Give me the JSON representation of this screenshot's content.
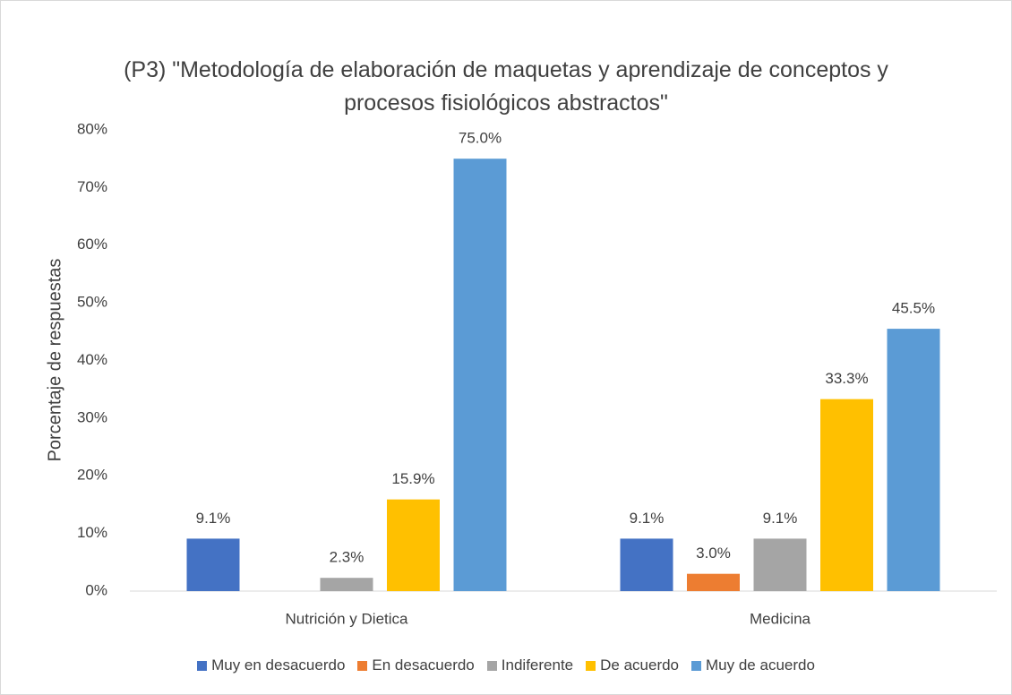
{
  "chart_data": {
    "type": "bar",
    "title": "(P3) \"Metodología de elaboración de maquetas y aprendizaje de conceptos y procesos fisiológicos abstractos\"",
    "y_label": "Porcentaje de respuestas",
    "categories": [
      "Nutrición y Dietica",
      "Medicina"
    ],
    "series": [
      {
        "name": "Muy en desacuerdo",
        "color": "#4472c4",
        "values": [
          9.1,
          9.1
        ],
        "value_labels": [
          "9.1%",
          "9.1%"
        ]
      },
      {
        "name": "En desacuerdo",
        "color": "#ed7d31",
        "values": [
          null,
          3.0
        ],
        "value_labels": [
          null,
          "3.0%"
        ]
      },
      {
        "name": "Indiferente",
        "color": "#a5a5a5",
        "values": [
          2.3,
          9.1
        ],
        "value_labels": [
          "2.3%",
          "9.1%"
        ]
      },
      {
        "name": "De acuerdo",
        "color": "#ffc000",
        "values": [
          15.9,
          33.3
        ],
        "value_labels": [
          "15.9%",
          "33.3%"
        ]
      },
      {
        "name": "Muy de acuerdo",
        "color": "#5b9bd5",
        "values": [
          75.0,
          45.5
        ],
        "value_labels": [
          "75.0%",
          "45.5%"
        ]
      }
    ],
    "ylim": [
      0,
      80
    ],
    "yticks": [
      {
        "value": 0,
        "label": "0%"
      },
      {
        "value": 10,
        "label": "10%"
      },
      {
        "value": 20,
        "label": "20%"
      },
      {
        "value": 30,
        "label": "30%"
      },
      {
        "value": 40,
        "label": "40%"
      },
      {
        "value": 50,
        "label": "50%"
      },
      {
        "value": 60,
        "label": "60%"
      },
      {
        "value": 70,
        "label": "70%"
      },
      {
        "value": 80,
        "label": "80%"
      }
    ],
    "grid": false,
    "legend": "bottom"
  }
}
